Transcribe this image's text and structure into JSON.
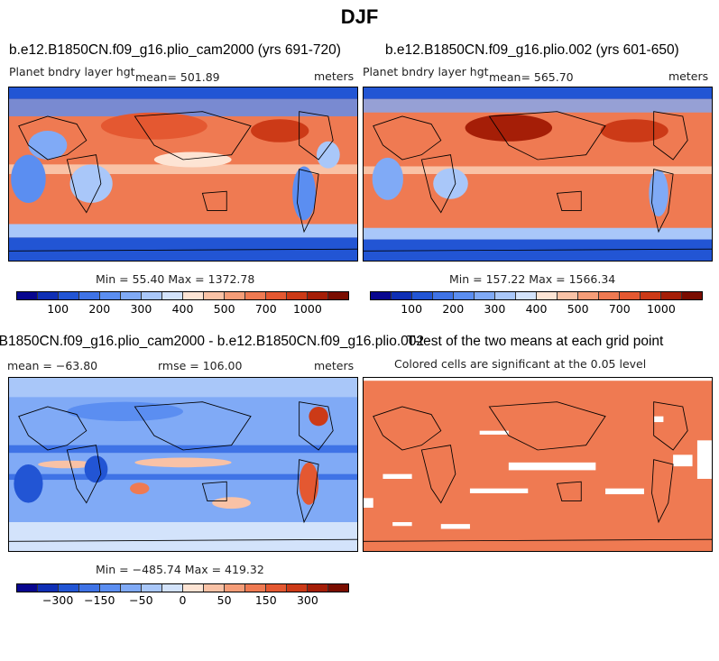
{
  "title": "DJF",
  "panels": [
    {
      "title": "b.e12.B1850CN.f09_g16.plio_cam2000 (yrs 691-720)",
      "variable": "Planet bndry layer hgt",
      "mean": "mean= 501.89",
      "units": "meters",
      "minmax": "Min =  55.40 Max = 1372.78"
    },
    {
      "title": "b.e12.B1850CN.f09_g16.plio.002 (yrs 601-650)",
      "variable": "Planet bndry layer hgt",
      "mean": "mean= 565.70",
      "units": "meters",
      "minmax": "Min = 157.22 Max = 1566.34"
    },
    {
      "title": "b.e12.B1850CN.f09_g16.plio_cam2000 - b.e12.B1850CN.f09_g16.plio.002",
      "mean": "mean = −63.80",
      "rmse": "rmse = 106.00",
      "units": "meters",
      "minmax": "Min = −485.74 Max = 419.32"
    },
    {
      "title": "T-test of the two means at each grid point",
      "subtitle": "Colored cells are significant at the 0.05 level"
    }
  ],
  "colorbars": {
    "abs_ticks": [
      "100",
      "200",
      "300",
      "400",
      "500",
      "700",
      "1000"
    ],
    "diff_ticks": [
      "−300",
      "−150",
      "−50",
      "0",
      "50",
      "150",
      "300"
    ],
    "colors": [
      "#08068f",
      "#0f2fb5",
      "#2255d4",
      "#3f73e6",
      "#5b8ef1",
      "#80aaf6",
      "#a9c7f9",
      "#d3e3fb",
      "#fde4d4",
      "#f9c2a6",
      "#f59d78",
      "#ef7a52",
      "#e45831",
      "#cc3a17",
      "#a51e07",
      "#7a0d00"
    ]
  }
}
